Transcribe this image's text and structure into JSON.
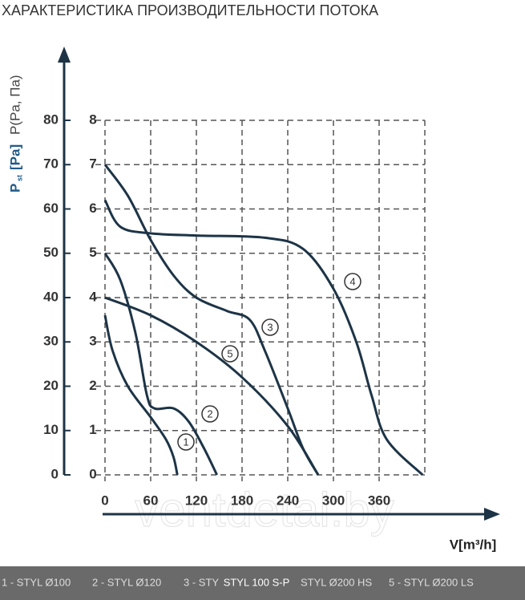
{
  "chart_data": {
    "type": "line",
    "title": "ХАРАКТЕРИСТИКА ПРОИЗВОДИТЕЛЬНОСТИ ПОТОКА",
    "xlabel": "V[m³/h]",
    "ylabel": "P",
    "ylabel_sub": "st",
    "ylabel_unit": "[Pa]",
    "y2label": "P(Pa, Па)",
    "xlim": [
      0,
      420
    ],
    "xticks": [
      0,
      60,
      120,
      180,
      240,
      300,
      360
    ],
    "ylim": [
      0,
      80
    ],
    "yticks": [
      0,
      10,
      20,
      30,
      40,
      50,
      60,
      70,
      80
    ],
    "y2lim": [
      0,
      8
    ],
    "y2ticks": [
      0,
      1,
      2,
      3,
      4,
      5,
      6,
      7,
      8
    ],
    "grid": true,
    "series": [
      {
        "name": "1",
        "color": "#1d3446",
        "x": [
          0,
          10,
          30,
          60,
          80,
          90,
          95
        ],
        "values": [
          36,
          28,
          20,
          13,
          8,
          4,
          0
        ]
      },
      {
        "name": "2",
        "color": "#1d3446",
        "x": [
          0,
          20,
          40,
          55,
          65,
          90,
          110,
          130,
          147
        ],
        "values": [
          50,
          44,
          32,
          18,
          15,
          15,
          12,
          6,
          0
        ]
      },
      {
        "name": "3",
        "color": "#1d3446",
        "x": [
          0,
          30,
          60,
          90,
          120,
          160,
          190,
          210,
          240,
          260,
          280
        ],
        "values": [
          70,
          63,
          53,
          45,
          40,
          37,
          35,
          28,
          15,
          6,
          0
        ]
      },
      {
        "name": "4",
        "color": "#1d3446",
        "x": [
          0,
          20,
          60,
          120,
          210,
          260,
          300,
          330,
          350,
          370,
          417
        ],
        "values": [
          62,
          56,
          54.5,
          54,
          53.5,
          51,
          42,
          30,
          18,
          8,
          0
        ]
      },
      {
        "name": "5",
        "color": "#1d3446",
        "x": [
          0,
          60,
          120,
          180,
          240,
          280
        ],
        "values": [
          40,
          36,
          30,
          22,
          11,
          0
        ]
      }
    ],
    "watermark": "ventdetal.by",
    "legend": [
      "1 - STYL Ø100",
      "2 - STYL Ø120",
      "3 - STY",
      "STYL Ø200 HS",
      "5 - STYL Ø200 LS"
    ],
    "caption": "STYL 100 S-P"
  }
}
